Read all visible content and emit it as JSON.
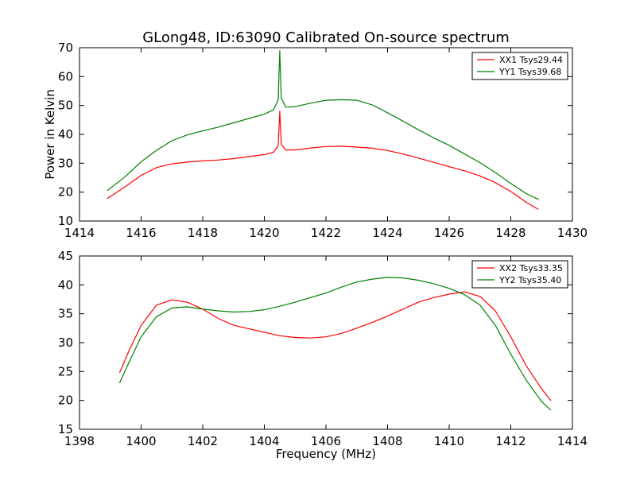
{
  "chart_data": [
    {
      "type": "line",
      "title": "GLong48, ID:63090 Calibrated On-source spectrum",
      "xlabel": "",
      "ylabel": "Power in Kelvin",
      "xlim": [
        1414,
        1430
      ],
      "ylim": [
        10,
        70
      ],
      "xticks": [
        1414,
        1416,
        1418,
        1420,
        1422,
        1424,
        1426,
        1428,
        1430
      ],
      "yticks": [
        10,
        20,
        30,
        40,
        50,
        60,
        70
      ],
      "grid": false,
      "legend": "top-right",
      "series": [
        {
          "name": "XX1 Tsys29.44",
          "color": "#ff0000",
          "x": [
            1414.9,
            1415.5,
            1416.0,
            1416.5,
            1417.0,
            1417.5,
            1418.0,
            1418.5,
            1419.0,
            1419.5,
            1420.0,
            1420.3,
            1420.45,
            1420.5,
            1420.55,
            1420.7,
            1421.0,
            1421.5,
            1422.0,
            1422.5,
            1423.0,
            1423.5,
            1424.0,
            1424.5,
            1425.0,
            1425.5,
            1426.0,
            1426.5,
            1427.0,
            1427.5,
            1428.0,
            1428.5,
            1428.9
          ],
          "y": [
            17.8,
            22.0,
            25.8,
            28.5,
            29.8,
            30.4,
            30.8,
            31.1,
            31.6,
            32.3,
            33.0,
            33.8,
            36.0,
            48.0,
            36.5,
            34.6,
            34.6,
            35.3,
            35.8,
            35.9,
            35.6,
            35.2,
            34.4,
            33.2,
            31.8,
            30.3,
            28.8,
            27.4,
            25.6,
            23.3,
            20.2,
            16.5,
            14.0
          ]
        },
        {
          "name": "YY1 Tsys39.68",
          "color": "#008000",
          "x": [
            1414.9,
            1415.5,
            1416.0,
            1416.5,
            1417.0,
            1417.5,
            1418.0,
            1418.5,
            1419.0,
            1419.5,
            1420.0,
            1420.3,
            1420.45,
            1420.5,
            1420.55,
            1420.7,
            1421.0,
            1421.5,
            1422.0,
            1422.5,
            1423.0,
            1423.5,
            1424.0,
            1424.5,
            1425.0,
            1425.5,
            1426.0,
            1426.5,
            1427.0,
            1427.5,
            1428.0,
            1428.5,
            1428.9
          ],
          "y": [
            20.5,
            25.5,
            30.5,
            34.5,
            37.8,
            39.8,
            41.2,
            42.5,
            44.0,
            45.5,
            47.0,
            48.5,
            52.0,
            69.0,
            52.5,
            49.4,
            49.6,
            50.8,
            51.8,
            52.0,
            51.8,
            50.2,
            47.5,
            44.6,
            41.6,
            38.8,
            36.2,
            33.2,
            30.2,
            26.8,
            23.0,
            19.5,
            17.5
          ]
        }
      ]
    },
    {
      "type": "line",
      "title": "",
      "xlabel": "Frequency (MHz)",
      "ylabel": "",
      "xlim": [
        1398,
        1414
      ],
      "ylim": [
        15,
        45
      ],
      "xticks": [
        1398,
        1400,
        1402,
        1404,
        1406,
        1408,
        1410,
        1412,
        1414
      ],
      "yticks": [
        15,
        20,
        25,
        30,
        35,
        40,
        45
      ],
      "grid": false,
      "legend": "top-right",
      "series": [
        {
          "name": "XX2 Tsys33.35",
          "color": "#ff0000",
          "x": [
            1399.3,
            1399.6,
            1400.0,
            1400.5,
            1401.0,
            1401.5,
            1402.0,
            1402.5,
            1403.0,
            1403.5,
            1404.0,
            1404.5,
            1405.0,
            1405.5,
            1406.0,
            1406.5,
            1407.0,
            1407.5,
            1408.0,
            1408.5,
            1409.0,
            1409.5,
            1410.0,
            1410.5,
            1411.0,
            1411.5,
            1412.0,
            1412.5,
            1413.0,
            1413.3
          ],
          "y": [
            24.8,
            28.5,
            33.0,
            36.5,
            37.4,
            37.0,
            35.8,
            34.2,
            33.0,
            32.4,
            31.8,
            31.2,
            30.9,
            30.8,
            31.0,
            31.6,
            32.5,
            33.5,
            34.6,
            35.8,
            37.0,
            37.8,
            38.4,
            38.8,
            38.0,
            35.5,
            31.0,
            26.0,
            22.0,
            20.0
          ]
        },
        {
          "name": "YY2 Tsys35.40",
          "color": "#008000",
          "x": [
            1399.3,
            1399.6,
            1400.0,
            1400.5,
            1401.0,
            1401.5,
            1402.0,
            1402.5,
            1403.0,
            1403.5,
            1404.0,
            1404.5,
            1405.0,
            1405.5,
            1406.0,
            1406.5,
            1407.0,
            1407.5,
            1408.0,
            1408.5,
            1409.0,
            1409.5,
            1410.0,
            1410.5,
            1411.0,
            1411.5,
            1412.0,
            1412.5,
            1413.0,
            1413.3
          ],
          "y": [
            23.0,
            26.5,
            31.0,
            34.5,
            36.0,
            36.2,
            35.8,
            35.5,
            35.3,
            35.4,
            35.7,
            36.3,
            37.0,
            37.8,
            38.6,
            39.6,
            40.5,
            41.0,
            41.3,
            41.2,
            40.8,
            40.2,
            39.4,
            38.3,
            36.5,
            33.0,
            28.0,
            23.5,
            19.8,
            18.3
          ]
        }
      ]
    }
  ]
}
